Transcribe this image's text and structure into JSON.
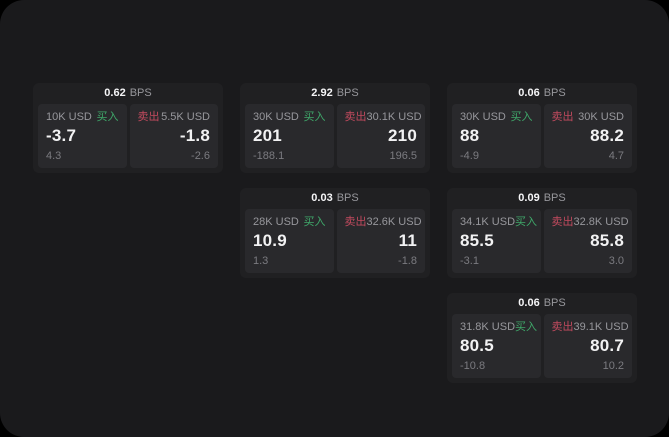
{
  "colors": {
    "page_bg": "#1a1a1c",
    "card_bg": "#202022",
    "panel_bg": "#29292c",
    "buy_green": "#3fa86a",
    "sell_red": "#c24a5e",
    "muted_text": "#97979c",
    "sub_text": "#7b7b80"
  },
  "labels": {
    "buy": "买入",
    "sell": "卖出",
    "bps_unit": "BPS"
  },
  "cards": [
    {
      "row": 1,
      "col": 1,
      "bps": "0.62",
      "buy": {
        "size": "10K USD",
        "value": "-3.7",
        "sub": "4.3"
      },
      "sell": {
        "size": "5.5K USD",
        "value": "-1.8",
        "sub": "-2.6"
      }
    },
    {
      "row": 1,
      "col": 2,
      "bps": "2.92",
      "buy": {
        "size": "30K USD",
        "value": "201",
        "sub": "-188.1"
      },
      "sell": {
        "size": "30.1K USD",
        "value": "210",
        "sub": "196.5"
      }
    },
    {
      "row": 1,
      "col": 3,
      "bps": "0.06",
      "buy": {
        "size": "30K USD",
        "value": "88",
        "sub": "-4.9"
      },
      "sell": {
        "size": "30K USD",
        "value": "88.2",
        "sub": "4.7"
      }
    },
    {
      "row": 2,
      "col": 2,
      "bps": "0.03",
      "buy": {
        "size": "28K USD",
        "value": "10.9",
        "sub": "1.3"
      },
      "sell": {
        "size": "32.6K USD",
        "value": "11",
        "sub": "-1.8"
      }
    },
    {
      "row": 2,
      "col": 3,
      "bps": "0.09",
      "buy": {
        "size": "34.1K USD",
        "value": "85.5",
        "sub": "-3.1"
      },
      "sell": {
        "size": "32.8K USD",
        "value": "85.8",
        "sub": "3.0"
      }
    },
    {
      "row": 3,
      "col": 3,
      "bps": "0.06",
      "buy": {
        "size": "31.8K USD",
        "value": "80.5",
        "sub": "-10.8"
      },
      "sell": {
        "size": "39.1K USD",
        "value": "80.7",
        "sub": "10.2"
      }
    }
  ]
}
